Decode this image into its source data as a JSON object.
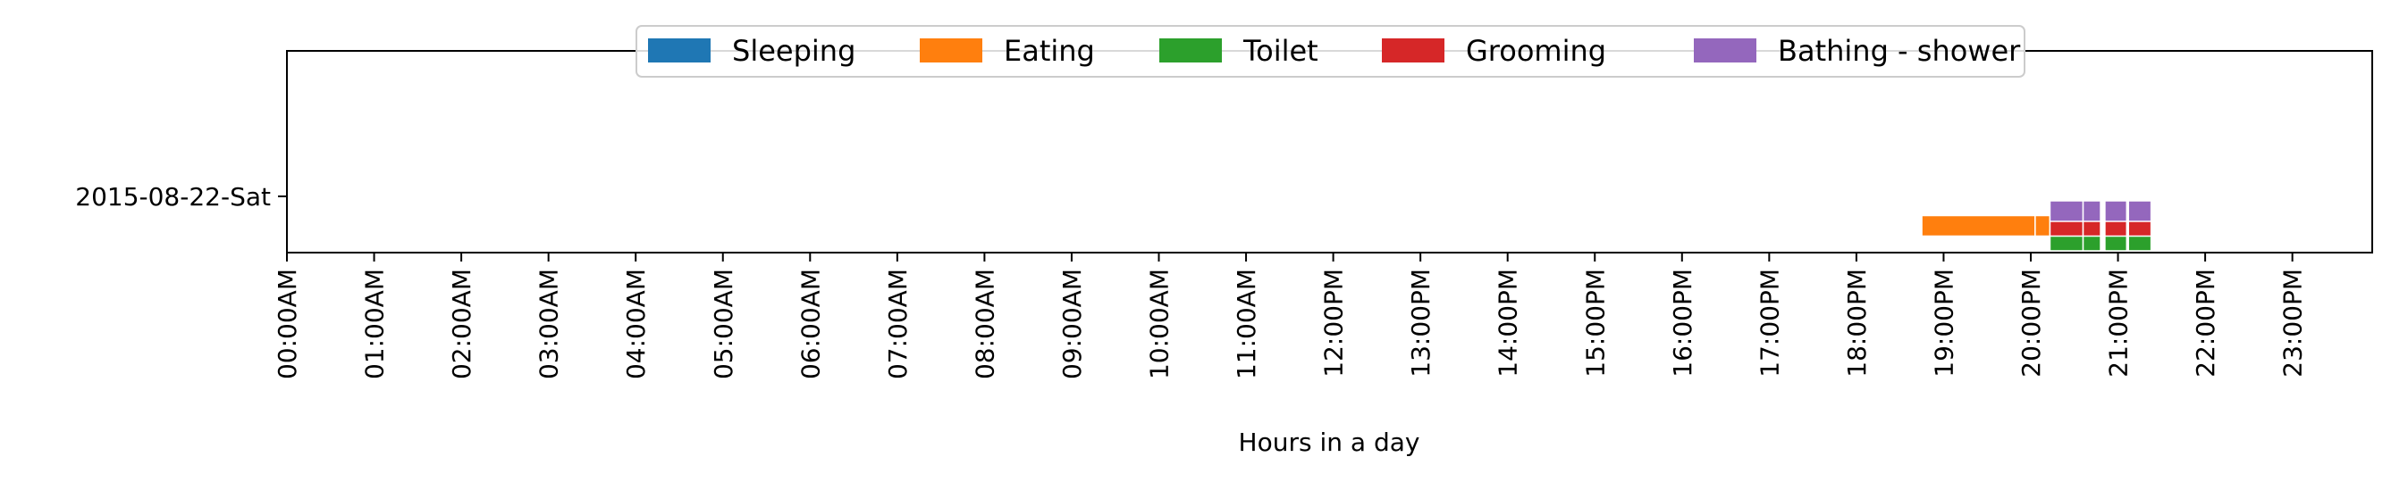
{
  "chart_data": {
    "type": "timeline",
    "title": "",
    "xlabel": "Hours in a day",
    "ylabel": "",
    "xlim": [
      0,
      24
    ],
    "categories": [
      "2015-08-22-Sat"
    ],
    "x_ticks": [
      "00:00AM",
      "01:00AM",
      "02:00AM",
      "03:00AM",
      "04:00AM",
      "05:00AM",
      "06:00AM",
      "07:00AM",
      "08:00AM",
      "09:00AM",
      "10:00AM",
      "11:00AM",
      "12:00PM",
      "13:00PM",
      "14:00PM",
      "15:00PM",
      "16:00PM",
      "17:00PM",
      "18:00PM",
      "19:00PM",
      "20:00PM",
      "21:00PM",
      "22:00PM",
      "23:00PM"
    ],
    "legend_position": "top-center",
    "series": [
      {
        "name": "Sleeping",
        "color": "#1f77b4",
        "level": 0,
        "intervals": []
      },
      {
        "name": "Eating",
        "color": "#ff7f0e",
        "level": -0.5,
        "intervals": [
          [
            18.75,
            20.05
          ],
          [
            20.05,
            20.22
          ]
        ]
      },
      {
        "name": "Toilet",
        "color": "#2ca02c",
        "level": -0.75,
        "intervals": [
          [
            20.22,
            20.6
          ],
          [
            20.6,
            20.8
          ],
          [
            20.85,
            21.1
          ],
          [
            21.12,
            21.38
          ]
        ]
      },
      {
        "name": "Grooming",
        "color": "#d62728",
        "level": -0.5,
        "intervals": [
          [
            20.22,
            20.6
          ],
          [
            20.6,
            20.8
          ],
          [
            20.85,
            21.1
          ],
          [
            21.12,
            21.38
          ]
        ]
      },
      {
        "name": "Bathing - shower",
        "color": "#9467bd",
        "level": -0.25,
        "intervals": [
          [
            20.22,
            20.6
          ],
          [
            20.6,
            20.8
          ],
          [
            20.85,
            21.1
          ],
          [
            21.12,
            21.38
          ]
        ]
      }
    ]
  }
}
